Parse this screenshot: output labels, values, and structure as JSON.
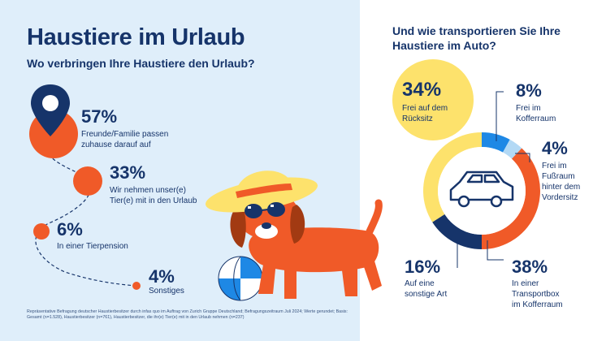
{
  "title": "Haustiere im Urlaub",
  "left_question": "Wo verbringen Ihre Haustiere den Urlaub?",
  "right_question": "Und wie transportieren Sie Ihre Haustiere im Auto?",
  "footnote": "Repräsentative Befragung deutscher Haustierbesitzer durch infas quo im Auftrag von Zurich Gruppe Deutschland; Befragungszeitraum Juli 2024; Werte gerundet; Basis: Gesamt (n=1.528), Haustierbesitzer (n=761), Haustierbesitzer, die ihr(e) Tier(e) mit in den Urlaub nehmen (n=237)",
  "colors": {
    "navy": "#16346a",
    "orange": "#f05a28",
    "yellow": "#fde26c",
    "blue": "#1e88e5",
    "light_blue": "#b3d9f5",
    "background": "#dfeefa"
  },
  "chart_data": [
    {
      "type": "bubble-path",
      "question": "Wo verbringen Ihre Haustiere den Urlaub?",
      "items": [
        {
          "value": 57,
          "label": "57%",
          "text": [
            "Freunde/Familie passen",
            "zuhause darauf auf"
          ],
          "icon": "location-pin-icon"
        },
        {
          "value": 33,
          "label": "33%",
          "text": [
            "Wir nehmen unser(e)",
            "Tier(e) mit in den Urlaub"
          ]
        },
        {
          "value": 6,
          "label": "6%",
          "text": [
            "In einer Tierpension"
          ]
        },
        {
          "value": 4,
          "label": "4%",
          "text": [
            "Sonstiges"
          ]
        }
      ]
    },
    {
      "type": "pie",
      "style": "donut",
      "question": "Und wie transportieren Sie Ihre Haustiere im Auto?",
      "center_icon": "car-icon",
      "slices": [
        {
          "value": 8,
          "label": "8%",
          "text": [
            "Frei im",
            "Kofferraum"
          ],
          "color": "#1e88e5"
        },
        {
          "value": 4,
          "label": "4%",
          "text": [
            "Frei im",
            "Fußraum",
            "hinter dem",
            "Vordersitz"
          ],
          "color": "#b3d9f5"
        },
        {
          "value": 38,
          "label": "38%",
          "text": [
            "In einer",
            "Transportbox",
            "im Kofferraum"
          ],
          "color": "#f05a28"
        },
        {
          "value": 16,
          "label": "16%",
          "text": [
            "Auf eine",
            "sonstige Art"
          ],
          "color": "#16346a"
        },
        {
          "value": 34,
          "label": "34%",
          "text": [
            "Frei auf dem",
            "Rücksitz"
          ],
          "color": "#fde26c"
        }
      ]
    }
  ]
}
